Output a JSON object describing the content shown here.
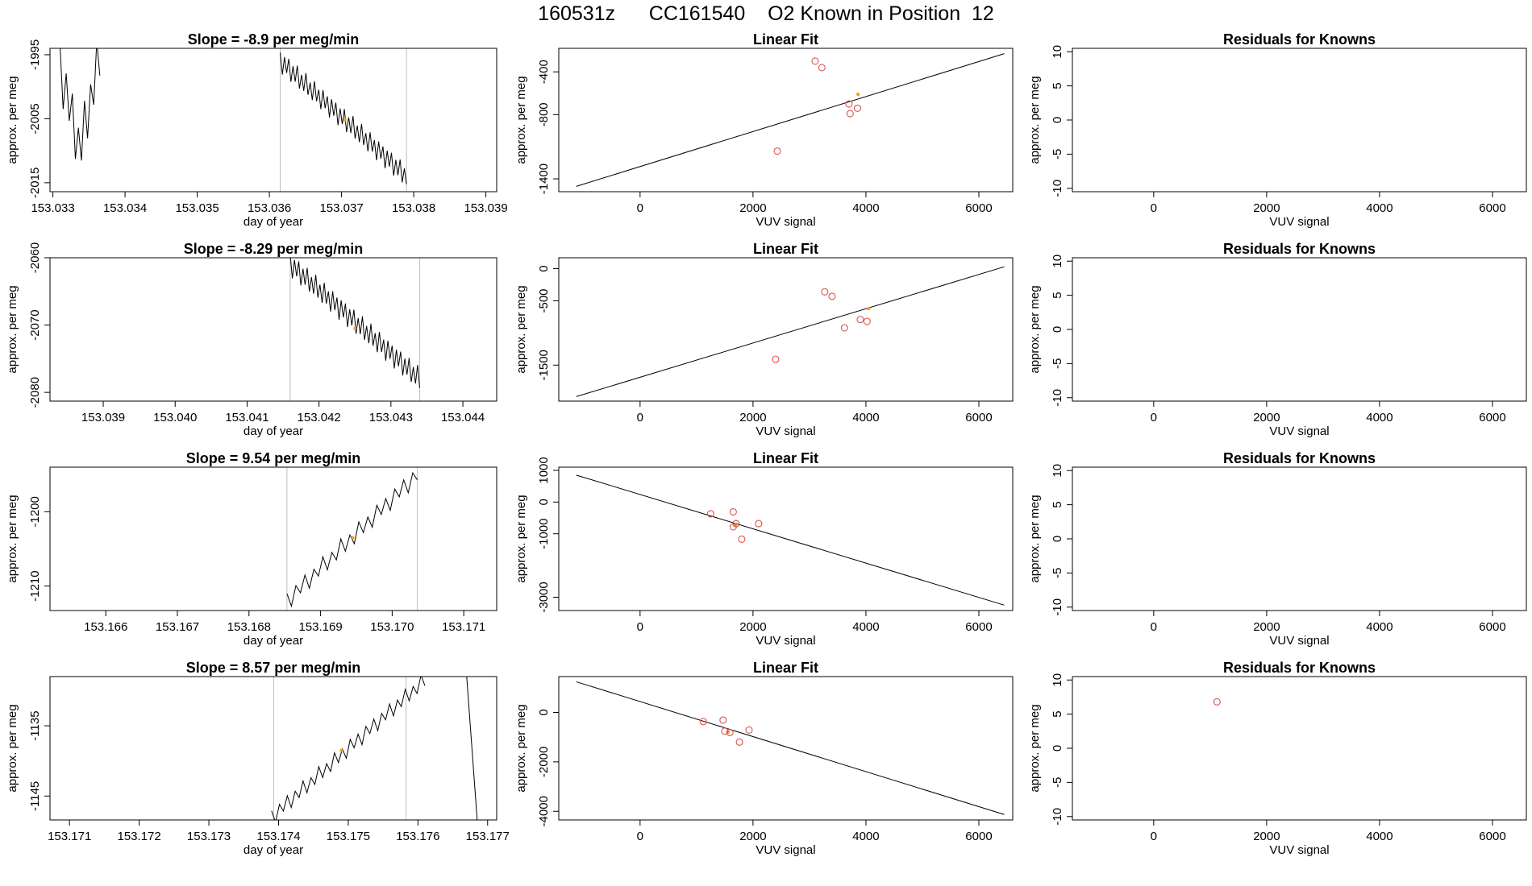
{
  "page_title": "160531z      CC161540    O2 Known in Position  12",
  "colors": {
    "line": "#000000",
    "gray_rule": "#bebebe",
    "point_red": "#d9544f",
    "point_orange": "#f2a01e",
    "axis": "#000000"
  },
  "chart_data": [
    {
      "type": "line",
      "name": "slope-row1",
      "title": "Slope =  -8.9  per meg/min",
      "xlabel": "day of year",
      "ylabel": "approx. per meg",
      "xlim": [
        153.03296,
        153.03915
      ],
      "ylim": [
        -2016.4,
        -1994.0
      ],
      "xticks": [
        153.033,
        153.034,
        153.035,
        153.036,
        153.037,
        153.038,
        153.039
      ],
      "xtick_labels": [
        "153.033",
        "153.034",
        "153.035",
        "153.036",
        "153.037",
        "153.038",
        "153.039"
      ],
      "yticks": [
        -1995,
        -2005,
        -2015
      ],
      "ytick_labels": [
        "-1995",
        "-2005",
        "-2015"
      ],
      "vlines": [
        153.03615,
        153.0379
      ],
      "marker": [
        153.03705,
        -2005.2
      ],
      "segments": [
        {
          "start": 153.0331,
          "end": 153.03365,
          "y0": -1997,
          "y1": -1995,
          "mid_y": -2010,
          "amp": 4.5,
          "n": 14
        },
        {
          "start": 153.03615,
          "end": 153.0379,
          "y0": -1996,
          "y1": -2014,
          "amp": 1.8,
          "n": 60
        }
      ]
    },
    {
      "type": "scatter",
      "name": "fit-row1",
      "title": "Linear Fit",
      "xlabel": "VUV signal",
      "ylabel": "approx. per meg",
      "xlim": [
        -1440,
        6600
      ],
      "ylim": [
        -1520,
        -180
      ],
      "xticks": [
        0,
        2000,
        4000,
        6000
      ],
      "xtick_labels": [
        "0",
        "2000",
        "4000",
        "6000"
      ],
      "yticks": [
        -400,
        -800,
        -1400
      ],
      "ytick_labels": [
        "-400",
        "-800",
        "-1400"
      ],
      "fit_line": [
        [
          -1130,
          -1470
        ],
        [
          6450,
          -230
        ]
      ],
      "points": [
        [
          3100,
          -300
        ],
        [
          3220,
          -360
        ],
        [
          2430,
          -1140
        ],
        [
          3700,
          -700
        ],
        [
          3850,
          -740
        ],
        [
          3720,
          -790
        ]
      ],
      "highlight_points": [
        [
          3860,
          -610
        ]
      ]
    },
    {
      "type": "scatter",
      "name": "resid-row1",
      "title": "Residuals for Knowns",
      "xlabel": "VUV signal",
      "ylabel": "approx. per meg",
      "xlim": [
        -1440,
        6600
      ],
      "ylim": [
        -10.5,
        10.5
      ],
      "xticks": [
        0,
        2000,
        4000,
        6000
      ],
      "xtick_labels": [
        "0",
        "2000",
        "4000",
        "6000"
      ],
      "yticks": [
        10,
        5,
        0,
        -5,
        -10
      ],
      "ytick_labels": [
        "10",
        "5",
        "0",
        "-5",
        "-10"
      ],
      "points": []
    },
    {
      "type": "line",
      "name": "slope-row2",
      "title": "Slope =  -8.29  per meg/min",
      "xlabel": "day of year",
      "ylabel": "approx. per meg",
      "xlim": [
        153.03826,
        153.04447
      ],
      "ylim": [
        -2081.3,
        -2060.0
      ],
      "xticks": [
        153.039,
        153.04,
        153.041,
        153.042,
        153.043,
        153.044
      ],
      "xtick_labels": [
        "153.039",
        "153.040",
        "153.041",
        "153.042",
        "153.043",
        "153.044"
      ],
      "yticks": [
        -2060,
        -2070,
        -2080
      ],
      "ytick_labels": [
        "-2060",
        "-2070",
        "-2080"
      ],
      "vlines": [
        153.0416,
        153.0434
      ],
      "marker": [
        153.0425,
        -2070.5
      ],
      "segments": [
        {
          "start": 153.0416,
          "end": 153.0434,
          "y0": -2061,
          "y1": -2078,
          "amp": 1.8,
          "n": 62
        }
      ]
    },
    {
      "type": "scatter",
      "name": "fit-row2",
      "title": "Linear Fit",
      "xlabel": "VUV signal",
      "ylabel": "approx. per meg",
      "xlim": [
        -1440,
        6600
      ],
      "ylim": [
        -2060,
        170
      ],
      "xticks": [
        0,
        2000,
        4000,
        6000
      ],
      "xtick_labels": [
        "0",
        "2000",
        "4000",
        "6000"
      ],
      "yticks": [
        0,
        -500,
        -1500
      ],
      "ytick_labels": [
        "0",
        "-500",
        "-1500"
      ],
      "fit_line": [
        [
          -1130,
          -1990
        ],
        [
          6450,
          30
        ]
      ],
      "points": [
        [
          3270,
          -360
        ],
        [
          3400,
          -430
        ],
        [
          2400,
          -1410
        ],
        [
          3620,
          -920
        ],
        [
          3900,
          -790
        ],
        [
          4020,
          -820
        ]
      ],
      "highlight_points": [
        [
          4050,
          -620
        ]
      ]
    },
    {
      "type": "scatter",
      "name": "resid-row2",
      "title": "Residuals for Knowns",
      "xlabel": "VUV signal",
      "ylabel": "approx. per meg",
      "xlim": [
        -1440,
        6600
      ],
      "ylim": [
        -10.5,
        10.5
      ],
      "xticks": [
        0,
        2000,
        4000,
        6000
      ],
      "xtick_labels": [
        "0",
        "2000",
        "4000",
        "6000"
      ],
      "yticks": [
        10,
        5,
        0,
        -5,
        -10
      ],
      "ytick_labels": [
        "10",
        "5",
        "0",
        "-5",
        "-10"
      ],
      "points": []
    },
    {
      "type": "line",
      "name": "slope-row3",
      "title": "Slope =  9.54  per meg/min",
      "xlabel": "day of year",
      "ylabel": "approx. per meg",
      "xlim": [
        153.16522,
        153.17146
      ],
      "ylim": [
        -1213.3,
        -1194.0
      ],
      "xticks": [
        153.166,
        153.167,
        153.168,
        153.169,
        153.17,
        153.171
      ],
      "xtick_labels": [
        "153.166",
        "153.167",
        "153.168",
        "153.169",
        "153.170",
        "153.171"
      ],
      "yticks": [
        -1200,
        -1210
      ],
      "ytick_labels": [
        "-1200",
        "-1210"
      ],
      "vlines": [
        153.16853,
        153.17035
      ],
      "marker": [
        153.16945,
        -1203.5
      ],
      "segments": [
        {
          "start": 153.16853,
          "end": 153.17035,
          "y0": -1212,
          "y1": -1195,
          "amp": 1.3,
          "n": 30
        }
      ]
    },
    {
      "type": "scatter",
      "name": "fit-row3",
      "title": "Linear Fit",
      "xlabel": "VUV signal",
      "ylabel": "approx. per meg",
      "xlim": [
        -1440,
        6600
      ],
      "ylim": [
        -3420,
        1100
      ],
      "xticks": [
        0,
        2000,
        4000,
        6000
      ],
      "xtick_labels": [
        "0",
        "2000",
        "4000",
        "6000"
      ],
      "yticks": [
        1000,
        0,
        -1000,
        -3000
      ],
      "ytick_labels": [
        "1000",
        "0",
        "-1000",
        "-3000"
      ],
      "fit_line": [
        [
          -1130,
          850
        ],
        [
          6450,
          -3250
        ]
      ],
      "points": [
        [
          1250,
          -370
        ],
        [
          1650,
          -310
        ],
        [
          1650,
          -780
        ],
        [
          1700,
          -680
        ],
        [
          2100,
          -680
        ],
        [
          1800,
          -1170
        ]
      ],
      "highlight_points": [
        [
          1680,
          -720
        ]
      ]
    },
    {
      "type": "scatter",
      "name": "resid-row3",
      "title": "Residuals for Knowns",
      "xlabel": "VUV signal",
      "ylabel": "approx. per meg",
      "xlim": [
        -1440,
        6600
      ],
      "ylim": [
        -10.5,
        10.5
      ],
      "xticks": [
        0,
        2000,
        4000,
        6000
      ],
      "xtick_labels": [
        "0",
        "2000",
        "4000",
        "6000"
      ],
      "yticks": [
        10,
        5,
        0,
        -5,
        -10
      ],
      "ytick_labels": [
        "10",
        "5",
        "0",
        "-5",
        "-10"
      ],
      "points": []
    },
    {
      "type": "line",
      "name": "slope-row4",
      "title": "Slope =  8.57  per meg/min",
      "xlabel": "day of year",
      "ylabel": "approx. per meg",
      "xlim": [
        153.17072,
        153.17713
      ],
      "ylim": [
        -1148.4,
        -1128.0
      ],
      "xticks": [
        153.171,
        153.172,
        153.173,
        153.174,
        153.175,
        153.176,
        153.177
      ],
      "xtick_labels": [
        "153.171",
        "153.172",
        "153.173",
        "153.174",
        "153.175",
        "153.176",
        "153.177"
      ],
      "yticks": [
        -1135,
        -1145
      ],
      "ytick_labels": [
        "-1135",
        "-1145"
      ],
      "vlines": [
        153.17393,
        153.17583
      ],
      "marker": [
        153.1749,
        -1138.5
      ],
      "segments": [
        {
          "start": 153.1739,
          "end": 153.1761,
          "y0": -1148,
          "y1": -1128.5,
          "amp": 1.2,
          "n": 40
        },
        {
          "start": 153.1767,
          "end": 153.17685,
          "y0": -1128,
          "y1": -1148.4,
          "amp": 0,
          "n": 2
        }
      ]
    },
    {
      "type": "scatter",
      "name": "fit-row4",
      "title": "Linear Fit",
      "xlabel": "VUV signal",
      "ylabel": "approx. per meg",
      "xlim": [
        -1440,
        6600
      ],
      "ylim": [
        -4350,
        1450
      ],
      "xticks": [
        0,
        2000,
        4000,
        6000
      ],
      "xtick_labels": [
        "0",
        "2000",
        "4000",
        "6000"
      ],
      "yticks": [
        0,
        -2000,
        -4000
      ],
      "ytick_labels": [
        "0",
        "-2000",
        "-4000"
      ],
      "fit_line": [
        [
          -1130,
          1240
        ],
        [
          6450,
          -4130
        ]
      ],
      "points": [
        [
          1120,
          -370
        ],
        [
          1470,
          -310
        ],
        [
          1500,
          -760
        ],
        [
          1590,
          -810
        ],
        [
          1930,
          -710
        ],
        [
          1760,
          -1200
        ]
      ],
      "highlight_points": [
        [
          1560,
          -790
        ]
      ]
    },
    {
      "type": "scatter",
      "name": "resid-row4",
      "title": "Residuals for Knowns",
      "xlabel": "VUV signal",
      "ylabel": "approx. per meg",
      "xlim": [
        -1440,
        6600
      ],
      "ylim": [
        -10.5,
        10.5
      ],
      "xticks": [
        0,
        2000,
        4000,
        6000
      ],
      "xtick_labels": [
        "0",
        "2000",
        "4000",
        "6000"
      ],
      "yticks": [
        10,
        5,
        0,
        -5,
        -10
      ],
      "ytick_labels": [
        "10",
        "5",
        "0",
        "-5",
        "-10"
      ],
      "points": [
        [
          1120,
          6.8
        ]
      ]
    }
  ]
}
